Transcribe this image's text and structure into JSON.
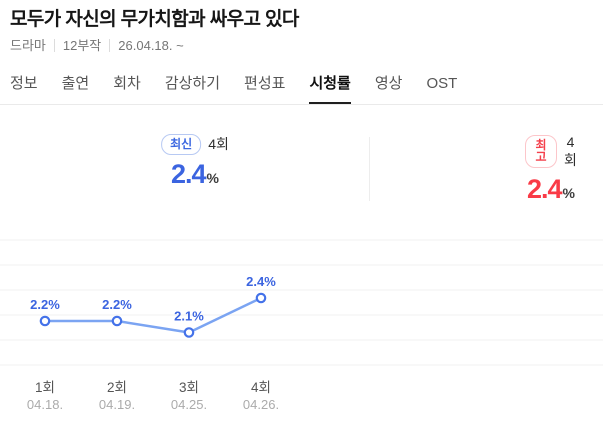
{
  "header": {
    "title": "모두가 자신의 무가치함과 싸우고 있다",
    "meta": [
      "드라마",
      "12부작",
      "26.04.18. ~"
    ]
  },
  "tabs": [
    {
      "key": "info",
      "label": "정보",
      "active": false
    },
    {
      "key": "cast",
      "label": "출연",
      "active": false
    },
    {
      "key": "episodes",
      "label": "회차",
      "active": false
    },
    {
      "key": "watch",
      "label": "감상하기",
      "active": false
    },
    {
      "key": "schedule",
      "label": "편성표",
      "active": false
    },
    {
      "key": "ratings",
      "label": "시청률",
      "active": true
    },
    {
      "key": "videos",
      "label": "영상",
      "active": false
    },
    {
      "key": "ost",
      "label": "OST",
      "active": false
    }
  ],
  "stats": {
    "latest": {
      "badge": "최신",
      "episode": "4회",
      "value": "2.4",
      "unit": "%"
    },
    "highest": {
      "badge": "최고",
      "episode": "4회",
      "value": "2.4",
      "unit": "%"
    }
  },
  "chart_data": {
    "type": "line",
    "categories": [
      "1회",
      "2회",
      "3회",
      "4회"
    ],
    "x_dates": [
      "04.18.",
      "04.19.",
      "04.25.",
      "04.26."
    ],
    "values": [
      2.2,
      2.2,
      2.1,
      2.4
    ],
    "point_labels": [
      "2.2%",
      "2.2%",
      "2.1%",
      "2.4%"
    ],
    "unit": "%",
    "grid": "horizontal",
    "legend": "none"
  },
  "colors": {
    "accent_blue": "#3b64e0",
    "line_blue": "#7ba4f2",
    "point_stroke_blue": "#4472e9",
    "accent_red": "#f93b47",
    "badge_blue_border": "#b7c9f3",
    "badge_red_border": "#fcc6ca",
    "gridline": "#f1f1f2",
    "tab_underline": "#1f1f1f",
    "episode_label": "#555555",
    "date_label": "#ababab"
  }
}
